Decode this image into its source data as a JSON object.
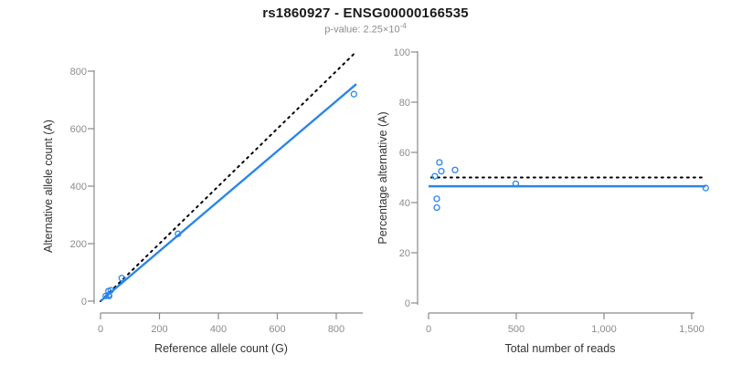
{
  "header": {
    "title": "rs1860927 - ENSG00000166535",
    "p_value_text": "p-value: 2.25×10",
    "p_value_exponent": "-4"
  },
  "colors": {
    "accent_blue": "#2b86e8",
    "identity_black": "#000000",
    "axis_line": "#8a8a8a",
    "tick_label": "#8c8c8c",
    "axis_title": "#333333",
    "background": "#ffffff"
  },
  "chart_data": [
    {
      "type": "scatter",
      "panel": "left",
      "xlabel": "Reference allele count (G)",
      "ylabel": "Alternative allele count (A)",
      "xlim": [
        0,
        880
      ],
      "ylim": [
        0,
        880
      ],
      "xticks": [
        0,
        200,
        400,
        600,
        800
      ],
      "xtick_labels": [
        "0",
        "200",
        "400",
        "600",
        "800"
      ],
      "yticks": [
        0,
        200,
        400,
        600,
        800
      ],
      "ytick_labels": [
        "0",
        "200",
        "400",
        "600",
        "800"
      ],
      "grid": false,
      "legend": false,
      "points": [
        [
          18,
          18
        ],
        [
          29,
          18
        ],
        [
          28,
          21
        ],
        [
          27,
          35
        ],
        [
          35,
          38
        ],
        [
          72,
          80
        ],
        [
          263,
          234
        ],
        [
          860,
          720
        ]
      ],
      "lines": [
        {
          "name": "identity-line-y-equals-x",
          "style": "dotted",
          "color_key": "identity_black",
          "x": [
            0,
            862
          ],
          "y": [
            0,
            862
          ]
        },
        {
          "name": "fit-line-slope-0.87",
          "style": "solid",
          "color_key": "accent_blue",
          "x": [
            0,
            868
          ],
          "y": [
            0,
            755
          ]
        }
      ]
    },
    {
      "type": "scatter",
      "panel": "right",
      "xlabel": "Total number of reads",
      "ylabel": "Percentage alternative (A)",
      "xlim": [
        0,
        1600
      ],
      "ylim": [
        0,
        100
      ],
      "xticks": [
        0,
        500,
        1000,
        1500
      ],
      "xtick_labels": [
        "0",
        "500",
        "1,000",
        "1,500"
      ],
      "yticks": [
        0,
        20,
        40,
        60,
        80,
        100
      ],
      "ytick_labels": [
        "0",
        "20",
        "40",
        "60",
        "80",
        "100"
      ],
      "grid": false,
      "legend": false,
      "points": [
        [
          36,
          50.5
        ],
        [
          47,
          38
        ],
        [
          47,
          41.5
        ],
        [
          62,
          56
        ],
        [
          73,
          52.5
        ],
        [
          151,
          53
        ],
        [
          497,
          47.5
        ],
        [
          1580,
          45.8
        ]
      ],
      "lines": [
        {
          "name": "null-line-50-percent",
          "style": "dotted",
          "color_key": "identity_black",
          "x": [
            15,
            1560
          ],
          "y": [
            50,
            50
          ]
        },
        {
          "name": "mean-line-46.5-percent",
          "style": "solid",
          "color_key": "accent_blue",
          "x": [
            0,
            1580
          ],
          "y": [
            46.5,
            46.5
          ]
        }
      ]
    }
  ]
}
